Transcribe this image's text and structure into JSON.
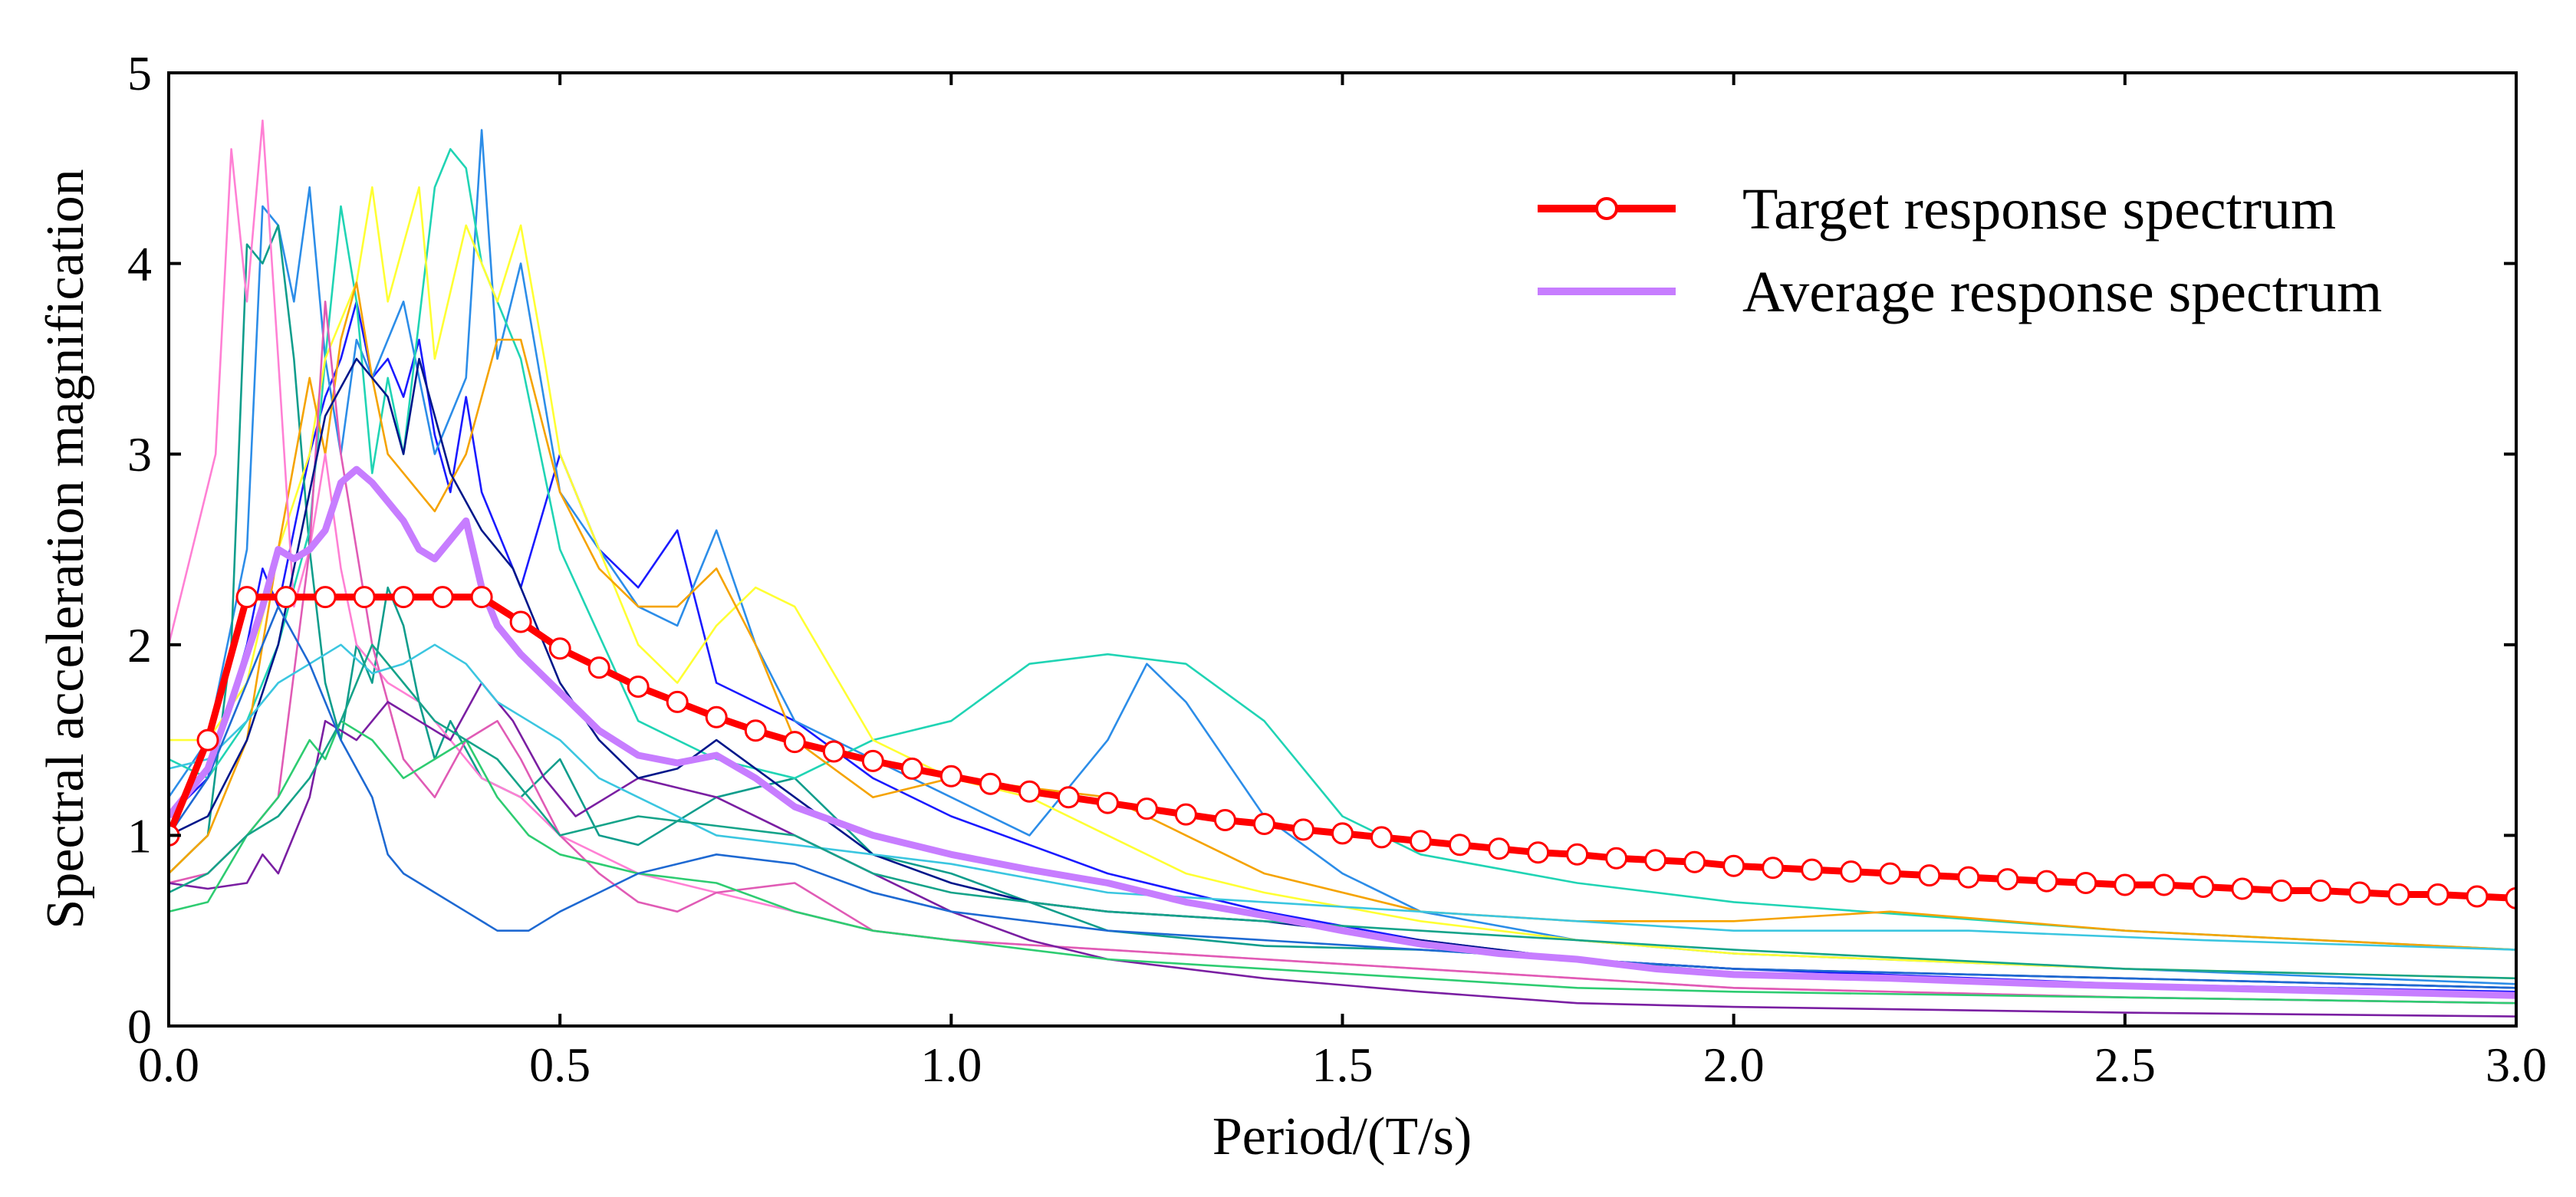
{
  "chart_data": {
    "type": "line",
    "title": "",
    "xlabel": "Period/(T/s)",
    "ylabel": "Spectral acceleration magnification",
    "xlim": [
      0.0,
      3.0
    ],
    "ylim": [
      0,
      5
    ],
    "xticks": [
      0.0,
      0.5,
      1.0,
      1.5,
      2.0,
      2.5,
      3.0
    ],
    "xtick_labels": [
      "0.0",
      "0.5",
      "1.0",
      "1.5",
      "2.0",
      "2.5",
      "3.0"
    ],
    "yticks": [
      0,
      1,
      2,
      3,
      4,
      5
    ],
    "ytick_labels": [
      "0",
      "1",
      "2",
      "3",
      "4",
      "5"
    ],
    "legend": {
      "position": "top-right",
      "entries": [
        {
          "label": "Target response spectrum",
          "color": "#ff0000",
          "marker": "circle-open"
        },
        {
          "label": "Average response spectrum",
          "color": "#c77dff",
          "marker": "none"
        }
      ]
    },
    "target_series": {
      "name": "Target response spectrum",
      "color": "#ff0000",
      "x": [
        0.0,
        0.05,
        0.1,
        0.15,
        0.2,
        0.25,
        0.3,
        0.35,
        0.4,
        0.45,
        0.5,
        0.55,
        0.6,
        0.65,
        0.7,
        0.75,
        0.8,
        0.85,
        0.9,
        0.95,
        1.0,
        1.05,
        1.1,
        1.15,
        1.2,
        1.25,
        1.3,
        1.35,
        1.4,
        1.45,
        1.5,
        1.55,
        1.6,
        1.65,
        1.7,
        1.75,
        1.8,
        1.85,
        1.9,
        1.95,
        2.0,
        2.05,
        2.1,
        2.15,
        2.2,
        2.25,
        2.3,
        2.35,
        2.4,
        2.45,
        2.5,
        2.55,
        2.6,
        2.65,
        2.7,
        2.75,
        2.8,
        2.85,
        2.9,
        2.95,
        3.0
      ],
      "values": [
        1.0,
        1.5,
        2.25,
        2.25,
        2.25,
        2.25,
        2.25,
        2.25,
        2.25,
        2.12,
        1.98,
        1.88,
        1.78,
        1.7,
        1.62,
        1.55,
        1.49,
        1.44,
        1.39,
        1.35,
        1.31,
        1.27,
        1.23,
        1.2,
        1.17,
        1.14,
        1.11,
        1.08,
        1.06,
        1.03,
        1.01,
        0.99,
        0.97,
        0.95,
        0.93,
        0.91,
        0.9,
        0.88,
        0.87,
        0.86,
        0.84,
        0.83,
        0.82,
        0.81,
        0.8,
        0.79,
        0.78,
        0.77,
        0.76,
        0.75,
        0.74,
        0.74,
        0.73,
        0.72,
        0.71,
        0.71,
        0.7,
        0.69,
        0.69,
        0.68,
        0.67
      ]
    },
    "average_series": {
      "name": "Average response spectrum",
      "color": "#c77dff",
      "x": [
        0.0,
        0.05,
        0.08,
        0.1,
        0.12,
        0.14,
        0.16,
        0.18,
        0.2,
        0.22,
        0.24,
        0.26,
        0.28,
        0.3,
        0.32,
        0.34,
        0.36,
        0.38,
        0.4,
        0.42,
        0.45,
        0.5,
        0.55,
        0.6,
        0.65,
        0.7,
        0.75,
        0.8,
        0.9,
        1.0,
        1.1,
        1.2,
        1.3,
        1.4,
        1.5,
        1.6,
        1.7,
        1.8,
        1.9,
        2.0,
        2.2,
        2.4,
        2.6,
        2.8,
        3.0
      ],
      "values": [
        1.1,
        1.35,
        1.7,
        1.95,
        2.2,
        2.5,
        2.45,
        2.5,
        2.6,
        2.85,
        2.92,
        2.85,
        2.75,
        2.65,
        2.5,
        2.45,
        2.55,
        2.65,
        2.3,
        2.1,
        1.95,
        1.75,
        1.55,
        1.42,
        1.38,
        1.42,
        1.3,
        1.15,
        1.0,
        0.9,
        0.82,
        0.75,
        0.65,
        0.58,
        0.5,
        0.43,
        0.38,
        0.35,
        0.3,
        0.27,
        0.25,
        0.22,
        0.2,
        0.18,
        0.16
      ]
    },
    "record_series": [
      {
        "color": "#1a1aff",
        "x": [
          0.0,
          0.05,
          0.1,
          0.12,
          0.14,
          0.16,
          0.18,
          0.2,
          0.22,
          0.24,
          0.26,
          0.28,
          0.3,
          0.32,
          0.34,
          0.36,
          0.38,
          0.4,
          0.45,
          0.5,
          0.55,
          0.6,
          0.65,
          0.7,
          0.8,
          0.9,
          1.0,
          1.2,
          1.4,
          1.6,
          1.8,
          2.0,
          2.5,
          3.0
        ],
        "values": [
          1.1,
          1.3,
          2.0,
          2.4,
          2.2,
          2.6,
          3.0,
          3.3,
          3.5,
          3.8,
          3.4,
          3.5,
          3.3,
          3.6,
          3.1,
          2.8,
          3.3,
          2.8,
          2.3,
          3.0,
          2.5,
          2.3,
          2.6,
          1.8,
          1.6,
          1.3,
          1.1,
          0.8,
          0.6,
          0.45,
          0.35,
          0.3,
          0.22,
          0.18
        ]
      },
      {
        "color": "#2c8de8",
        "x": [
          0.0,
          0.05,
          0.1,
          0.12,
          0.14,
          0.16,
          0.18,
          0.2,
          0.22,
          0.24,
          0.26,
          0.3,
          0.34,
          0.38,
          0.4,
          0.42,
          0.45,
          0.5,
          0.55,
          0.6,
          0.65,
          0.7,
          0.75,
          0.8,
          0.9,
          1.0,
          1.1,
          1.2,
          1.25,
          1.3,
          1.4,
          1.5,
          1.6,
          1.8,
          2.0,
          2.5,
          3.0
        ],
        "values": [
          1.2,
          1.5,
          2.5,
          4.3,
          4.2,
          3.8,
          4.4,
          3.5,
          3.0,
          3.6,
          3.4,
          3.8,
          3.0,
          3.4,
          4.7,
          3.5,
          4.0,
          2.8,
          2.5,
          2.2,
          2.1,
          2.6,
          2.0,
          1.6,
          1.4,
          1.2,
          1.0,
          1.5,
          1.9,
          1.7,
          1.1,
          0.8,
          0.6,
          0.45,
          0.38,
          0.3,
          0.22
        ]
      },
      {
        "color": "#0f9d8c",
        "x": [
          0.0,
          0.05,
          0.08,
          0.1,
          0.12,
          0.14,
          0.16,
          0.18,
          0.2,
          0.22,
          0.24,
          0.26,
          0.28,
          0.3,
          0.32,
          0.34,
          0.36,
          0.4,
          0.45,
          0.5,
          0.55,
          0.6,
          0.7,
          0.8,
          0.9,
          1.0,
          1.2,
          1.4,
          1.6,
          1.8,
          2.0,
          2.5,
          3.0
        ],
        "values": [
          0.8,
          1.0,
          2.0,
          4.1,
          4.0,
          4.2,
          3.5,
          2.5,
          1.8,
          1.5,
          2.0,
          1.8,
          2.3,
          2.1,
          1.7,
          1.4,
          1.6,
          1.3,
          1.2,
          1.4,
          1.0,
          0.95,
          1.2,
          1.3,
          0.9,
          0.8,
          0.5,
          0.42,
          0.4,
          0.35,
          0.28,
          0.2,
          0.15
        ]
      },
      {
        "color": "#20d4b4",
        "x": [
          0.0,
          0.05,
          0.1,
          0.14,
          0.18,
          0.2,
          0.22,
          0.24,
          0.26,
          0.28,
          0.3,
          0.32,
          0.34,
          0.36,
          0.38,
          0.4,
          0.45,
          0.5,
          0.6,
          0.7,
          0.8,
          0.9,
          1.0,
          1.1,
          1.2,
          1.3,
          1.4,
          1.5,
          1.6,
          1.8,
          2.0,
          2.5,
          3.0
        ],
        "values": [
          1.4,
          1.3,
          1.6,
          2.0,
          2.6,
          3.5,
          4.3,
          3.8,
          2.9,
          3.4,
          3.0,
          3.7,
          4.4,
          4.6,
          4.5,
          4.0,
          3.5,
          2.5,
          1.6,
          1.4,
          1.3,
          1.5,
          1.6,
          1.9,
          1.95,
          1.9,
          1.6,
          1.1,
          0.9,
          0.75,
          0.65,
          0.5,
          0.4
        ]
      },
      {
        "color": "#ffff33",
        "x": [
          0.0,
          0.05,
          0.1,
          0.14,
          0.18,
          0.2,
          0.24,
          0.26,
          0.28,
          0.3,
          0.32,
          0.34,
          0.38,
          0.42,
          0.45,
          0.48,
          0.5,
          0.55,
          0.6,
          0.65,
          0.7,
          0.75,
          0.8,
          0.9,
          1.0,
          1.1,
          1.2,
          1.3,
          1.4,
          1.6,
          1.8,
          2.0,
          2.5,
          3.0
        ],
        "values": [
          1.5,
          1.5,
          1.8,
          2.5,
          3.0,
          3.5,
          3.9,
          4.4,
          3.8,
          4.1,
          4.4,
          3.5,
          4.2,
          3.8,
          4.2,
          3.5,
          3.0,
          2.5,
          2.0,
          1.8,
          2.1,
          2.3,
          2.2,
          1.5,
          1.3,
          1.2,
          1.0,
          0.8,
          0.7,
          0.55,
          0.45,
          0.38,
          0.3,
          0.25
        ]
      },
      {
        "color": "#f5a300",
        "x": [
          0.0,
          0.05,
          0.1,
          0.14,
          0.18,
          0.2,
          0.22,
          0.24,
          0.26,
          0.28,
          0.3,
          0.34,
          0.38,
          0.42,
          0.45,
          0.5,
          0.55,
          0.6,
          0.65,
          0.7,
          0.75,
          0.8,
          0.9,
          1.0,
          1.1,
          1.2,
          1.3,
          1.4,
          1.6,
          1.8,
          2.0,
          2.2,
          2.5,
          3.0
        ],
        "values": [
          0.8,
          1.0,
          1.5,
          2.5,
          3.4,
          3.0,
          3.6,
          3.9,
          3.4,
          3.0,
          2.9,
          2.7,
          3.0,
          3.6,
          3.6,
          2.8,
          2.4,
          2.2,
          2.2,
          2.4,
          2.0,
          1.5,
          1.2,
          1.3,
          1.25,
          1.2,
          1.0,
          0.8,
          0.6,
          0.55,
          0.55,
          0.6,
          0.5,
          0.4
        ]
      },
      {
        "color": "#ff80d4",
        "x": [
          0.0,
          0.03,
          0.06,
          0.08,
          0.1,
          0.12,
          0.14,
          0.16,
          0.18,
          0.2,
          0.22,
          0.24,
          0.28,
          0.32,
          0.36,
          0.4,
          0.45,
          0.5,
          0.55,
          0.6,
          0.7,
          0.8,
          0.9,
          1.0,
          1.2,
          1.4,
          1.6,
          1.8,
          2.0,
          2.5,
          3.0
        ],
        "values": [
          2.0,
          2.5,
          3.0,
          4.6,
          3.8,
          4.75,
          3.5,
          2.2,
          2.5,
          3.0,
          2.4,
          2.0,
          1.8,
          1.7,
          1.5,
          1.3,
          1.2,
          1.0,
          0.9,
          0.8,
          0.7,
          0.6,
          0.5,
          0.45,
          0.4,
          0.35,
          0.3,
          0.25,
          0.2,
          0.15,
          0.12
        ]
      },
      {
        "color": "#e05bb5",
        "x": [
          0.0,
          0.05,
          0.1,
          0.14,
          0.18,
          0.2,
          0.22,
          0.26,
          0.3,
          0.34,
          0.38,
          0.42,
          0.45,
          0.5,
          0.55,
          0.6,
          0.65,
          0.7,
          0.8,
          0.9,
          1.0,
          1.2,
          1.4,
          1.6,
          1.8,
          2.0,
          2.5,
          3.0
        ],
        "values": [
          0.75,
          0.8,
          1.0,
          1.2,
          2.5,
          3.8,
          3.0,
          2.0,
          1.4,
          1.2,
          1.5,
          1.6,
          1.4,
          1.0,
          0.8,
          0.65,
          0.6,
          0.7,
          0.75,
          0.5,
          0.45,
          0.4,
          0.35,
          0.3,
          0.25,
          0.2,
          0.15,
          0.12
        ]
      },
      {
        "color": "#7a1fa2",
        "x": [
          0.0,
          0.05,
          0.1,
          0.12,
          0.14,
          0.16,
          0.18,
          0.2,
          0.24,
          0.28,
          0.32,
          0.36,
          0.4,
          0.44,
          0.48,
          0.52,
          0.56,
          0.6,
          0.7,
          0.8,
          0.9,
          1.0,
          1.1,
          1.2,
          1.4,
          1.6,
          1.8,
          2.0,
          2.5,
          3.0
        ],
        "values": [
          0.75,
          0.72,
          0.75,
          0.9,
          0.8,
          1.0,
          1.2,
          1.6,
          1.5,
          1.7,
          1.6,
          1.5,
          1.8,
          1.6,
          1.3,
          1.1,
          1.2,
          1.3,
          1.2,
          1.0,
          0.8,
          0.6,
          0.45,
          0.35,
          0.25,
          0.18,
          0.12,
          0.1,
          0.07,
          0.05
        ]
      },
      {
        "color": "#00178a",
        "x": [
          0.0,
          0.05,
          0.1,
          0.14,
          0.18,
          0.2,
          0.24,
          0.28,
          0.3,
          0.32,
          0.34,
          0.36,
          0.4,
          0.44,
          0.48,
          0.5,
          0.55,
          0.6,
          0.65,
          0.7,
          0.8,
          0.9,
          1.0,
          1.1,
          1.2,
          1.4,
          1.6,
          1.8,
          2.0,
          2.5,
          3.0
        ],
        "values": [
          1.0,
          1.1,
          1.5,
          2.0,
          2.8,
          3.2,
          3.5,
          3.3,
          3.0,
          3.5,
          3.2,
          2.9,
          2.6,
          2.4,
          2.0,
          1.8,
          1.5,
          1.3,
          1.35,
          1.5,
          1.2,
          0.9,
          0.75,
          0.65,
          0.6,
          0.55,
          0.45,
          0.35,
          0.3,
          0.25,
          0.2
        ]
      },
      {
        "color": "#3bc6e0",
        "x": [
          0.0,
          0.05,
          0.1,
          0.14,
          0.18,
          0.22,
          0.26,
          0.3,
          0.34,
          0.38,
          0.42,
          0.46,
          0.5,
          0.55,
          0.6,
          0.7,
          0.8,
          0.9,
          1.0,
          1.2,
          1.4,
          1.6,
          1.8,
          2.0,
          2.3,
          2.6,
          3.0
        ],
        "values": [
          1.35,
          1.4,
          1.6,
          1.8,
          1.9,
          2.0,
          1.85,
          1.9,
          2.0,
          1.9,
          1.7,
          1.6,
          1.5,
          1.3,
          1.2,
          1.0,
          0.95,
          0.9,
          0.85,
          0.7,
          0.65,
          0.6,
          0.55,
          0.5,
          0.5,
          0.45,
          0.4
        ]
      },
      {
        "color": "#2ecc71",
        "x": [
          0.0,
          0.05,
          0.1,
          0.14,
          0.18,
          0.2,
          0.22,
          0.26,
          0.3,
          0.34,
          0.38,
          0.42,
          0.46,
          0.5,
          0.55,
          0.6,
          0.7,
          0.8,
          0.9,
          1.0,
          1.2,
          1.4,
          1.6,
          1.8,
          2.0,
          2.5,
          3.0
        ],
        "values": [
          0.6,
          0.65,
          1.0,
          1.2,
          1.5,
          1.4,
          1.6,
          1.5,
          1.3,
          1.4,
          1.5,
          1.2,
          1.0,
          0.9,
          0.85,
          0.8,
          0.75,
          0.6,
          0.5,
          0.45,
          0.35,
          0.3,
          0.25,
          0.2,
          0.18,
          0.15,
          0.12
        ]
      },
      {
        "color": "#15a389",
        "x": [
          0.0,
          0.05,
          0.1,
          0.14,
          0.18,
          0.22,
          0.26,
          0.3,
          0.34,
          0.38,
          0.42,
          0.46,
          0.5,
          0.55,
          0.6,
          0.7,
          0.8,
          0.9,
          1.0,
          1.2,
          1.4,
          1.6,
          1.8,
          2.0,
          2.5,
          3.0
        ],
        "values": [
          0.7,
          0.8,
          1.0,
          1.1,
          1.3,
          1.6,
          2.0,
          1.8,
          1.6,
          1.5,
          1.4,
          1.2,
          1.0,
          1.05,
          1.1,
          1.05,
          1.0,
          0.8,
          0.7,
          0.6,
          0.55,
          0.5,
          0.45,
          0.4,
          0.3,
          0.25
        ]
      },
      {
        "color": "#1e69d2",
        "x": [
          0.0,
          0.05,
          0.1,
          0.14,
          0.18,
          0.22,
          0.26,
          0.28,
          0.3,
          0.34,
          0.38,
          0.42,
          0.46,
          0.5,
          0.55,
          0.6,
          0.7,
          0.8,
          0.9,
          1.0,
          1.2,
          1.4,
          1.6,
          1.8,
          2.0,
          2.5,
          3.0
        ],
        "values": [
          1.0,
          1.3,
          1.8,
          2.2,
          1.9,
          1.5,
          1.2,
          0.9,
          0.8,
          0.7,
          0.6,
          0.5,
          0.5,
          0.6,
          0.7,
          0.8,
          0.9,
          0.85,
          0.7,
          0.6,
          0.5,
          0.45,
          0.4,
          0.35,
          0.3,
          0.25,
          0.2
        ]
      }
    ]
  }
}
